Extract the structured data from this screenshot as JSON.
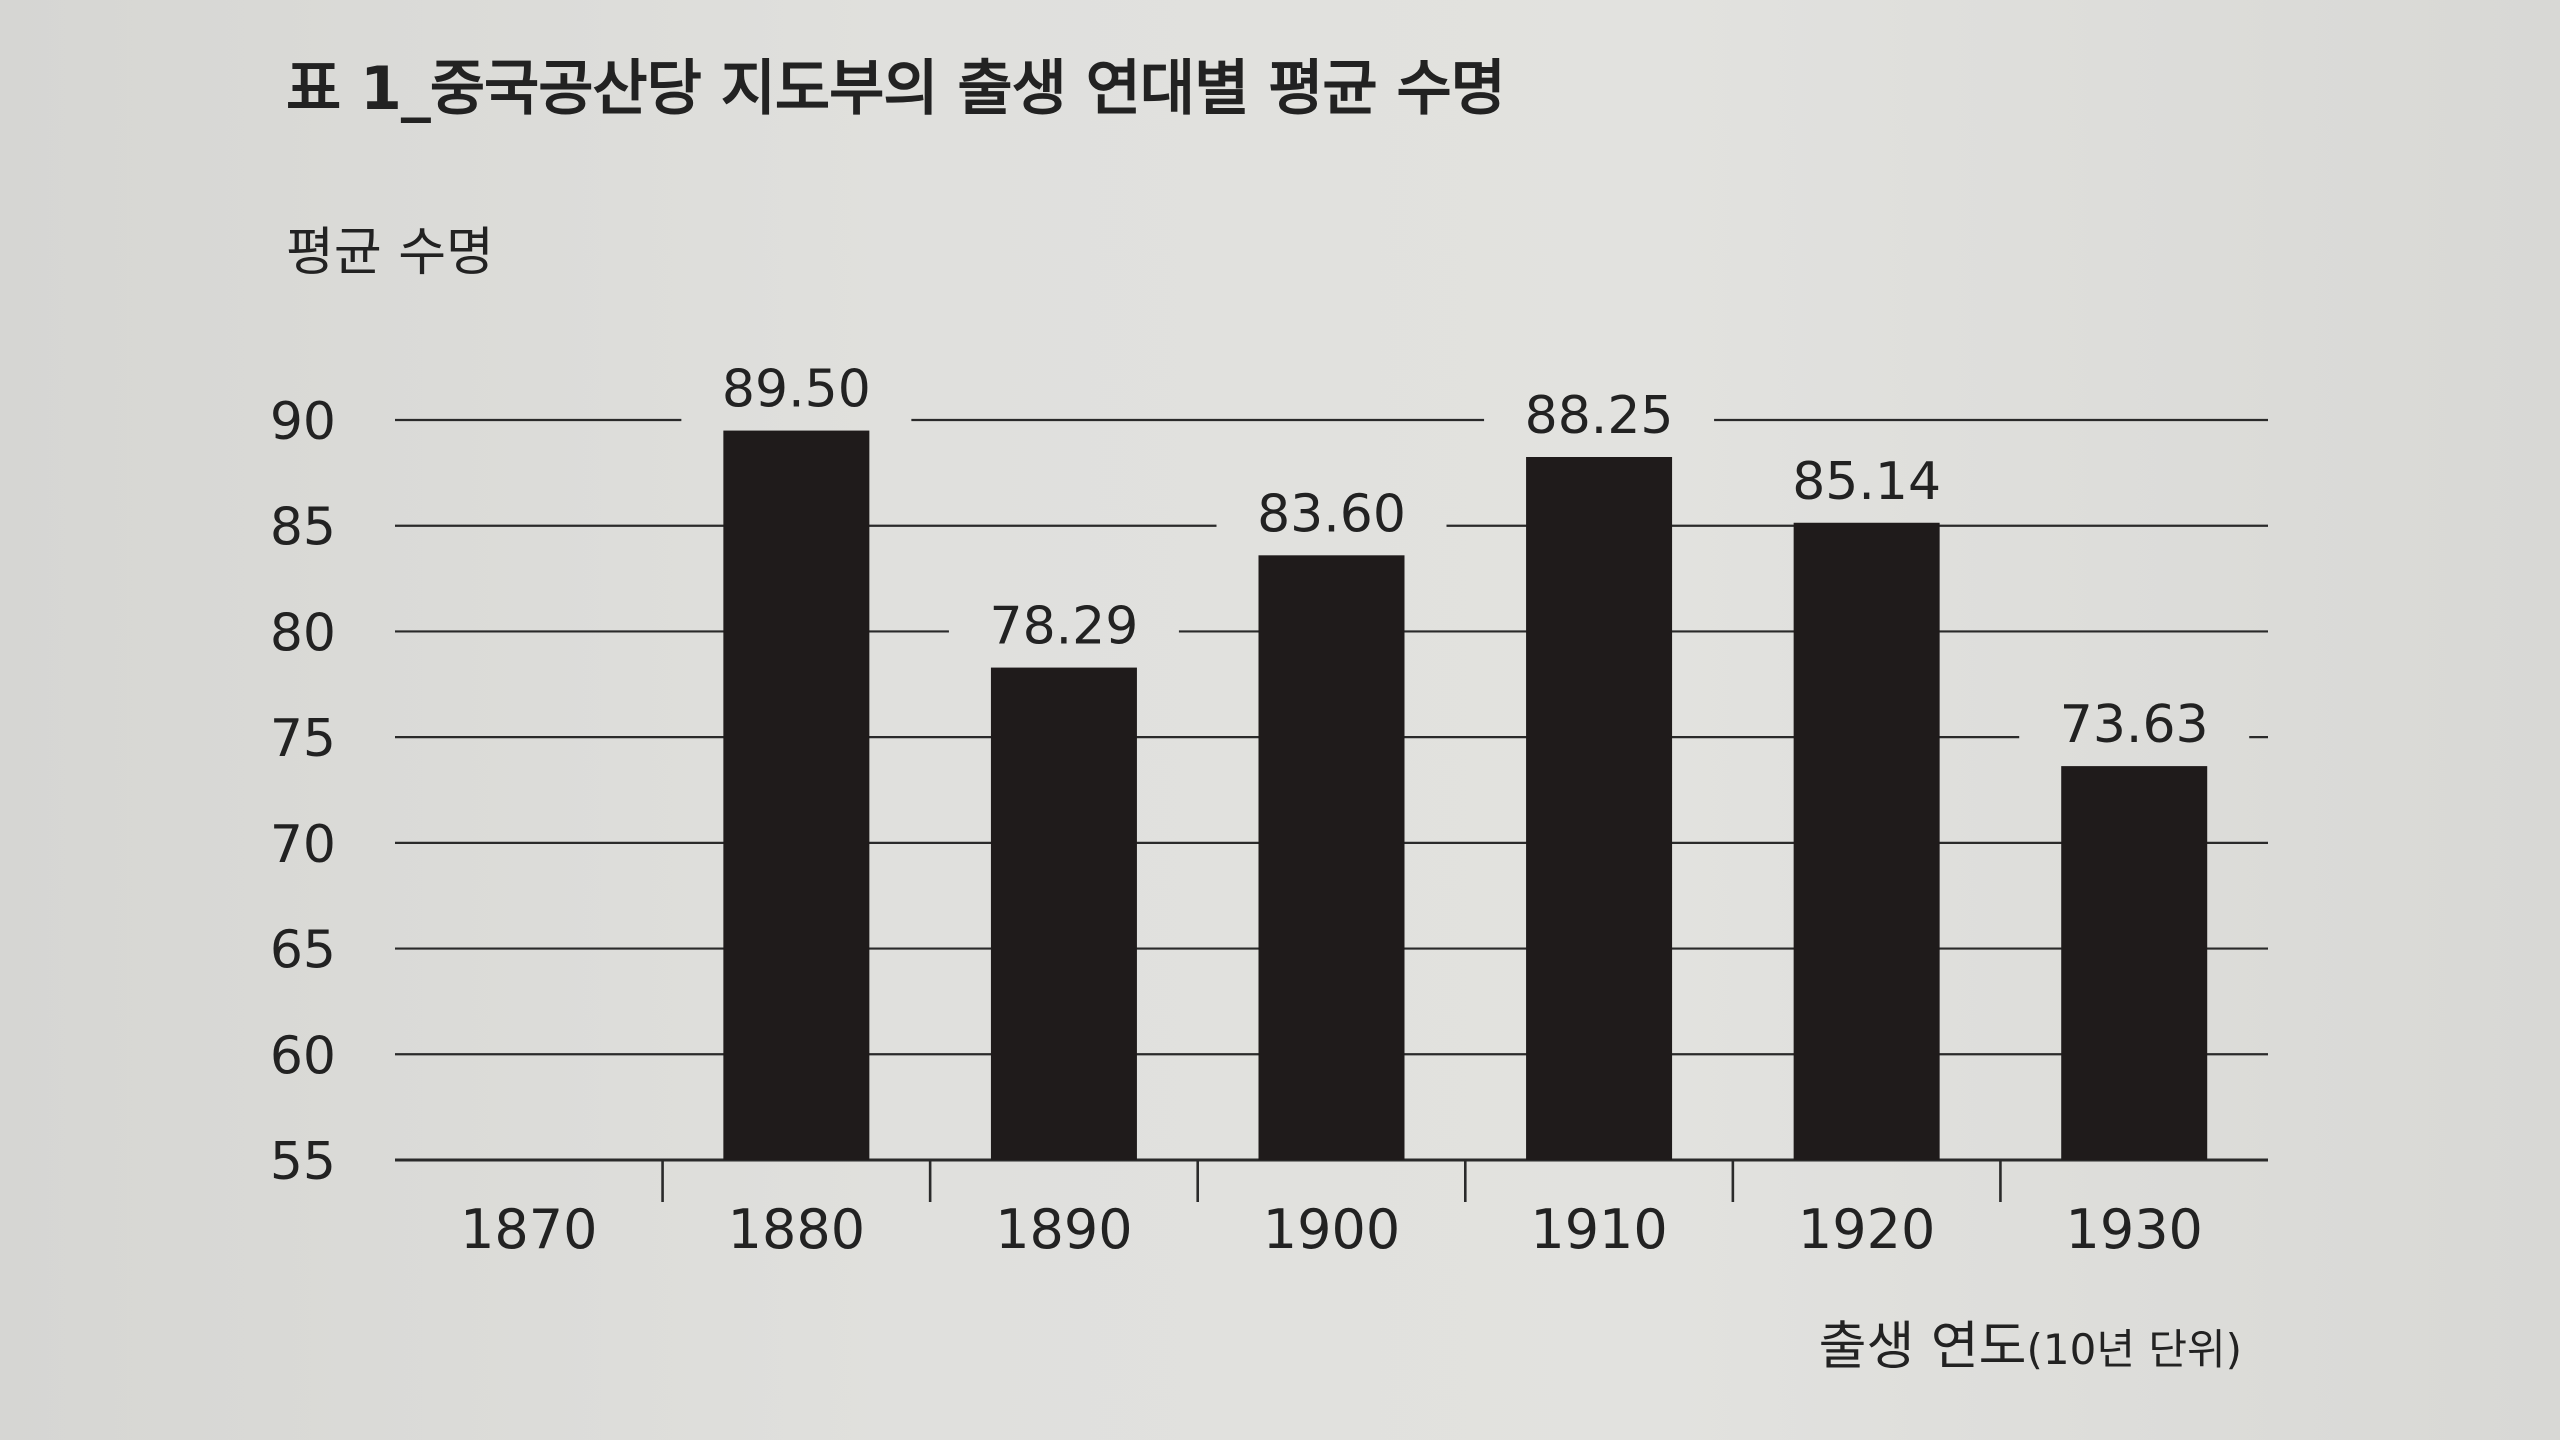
{
  "figure": {
    "title": "표 1_중국공산당 지도부의 출생 연대별 평균 수명",
    "y_axis_label": "평균 수명",
    "x_axis_label": "출생 연도",
    "x_axis_unit": "(10년 단위)"
  },
  "chart_data": {
    "type": "bar",
    "title": "표 1_중국공산당 지도부의 출생 연대별 평균 수명",
    "xlabel": "출생 연도(10년 단위)",
    "ylabel": "평균 수명",
    "categories": [
      "1870",
      "1880",
      "1890",
      "1900",
      "1910",
      "1920",
      "1930"
    ],
    "values": [
      null,
      89.5,
      78.29,
      83.6,
      88.25,
      85.14,
      73.63
    ],
    "value_labels": [
      "",
      "89.50",
      "78.29",
      "83.60",
      "88.25",
      "85.14",
      "73.63"
    ],
    "y_ticks": [
      55,
      60,
      65,
      70,
      75,
      80,
      85,
      90
    ],
    "ylim": [
      55,
      90
    ],
    "grid": true,
    "legend": "none",
    "colors": {
      "bar": "#1f1b1b",
      "text": "#222222",
      "grid": "#2a2a2a"
    }
  }
}
